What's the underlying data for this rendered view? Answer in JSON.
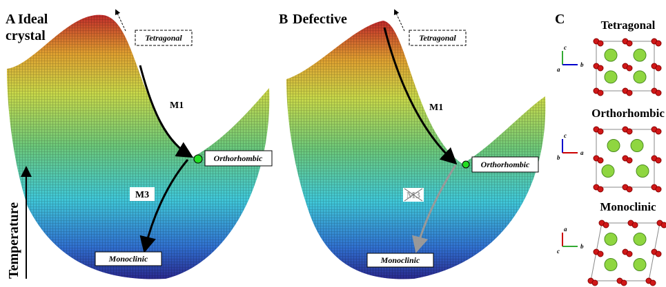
{
  "panel_a": {
    "letter": "A",
    "title_lines": [
      "Ideal",
      "crystal"
    ],
    "tetragonal": "Tetragonal",
    "orthorhombic": "Orthorhombic",
    "monoclinic": "Monoclinic",
    "path_1": "M1",
    "path_2": "M3",
    "axis": "Temperature"
  },
  "panel_b": {
    "letter": "B",
    "title": "Defective",
    "tetragonal": "Tetragonal",
    "orthorhombic": "Orthorhombic",
    "monoclinic": "Monoclinic",
    "path_1": "M1",
    "path_2": "M3"
  },
  "panel_c": {
    "letter": "C",
    "structures": [
      {
        "name": "Tetragonal",
        "axes": [
          "c",
          "b",
          "a"
        ]
      },
      {
        "name": "Orthorhombic",
        "axes": [
          "c",
          "a",
          "b"
        ]
      },
      {
        "name": "Monoclinic",
        "axes": [
          "a",
          "b",
          "c"
        ]
      }
    ]
  }
}
